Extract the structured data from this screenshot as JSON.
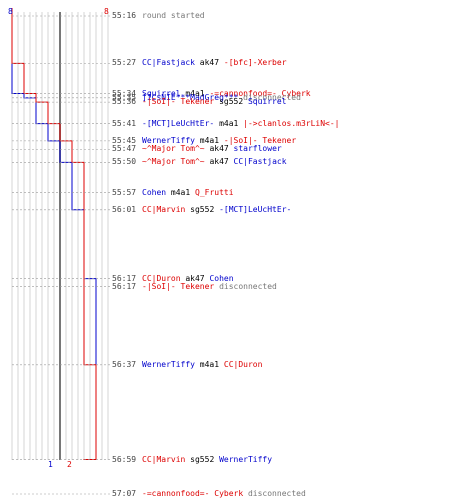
{
  "colors": {
    "blue": "#0000cc",
    "red": "#dd0000",
    "gray": "#777777",
    "grid": "#bbbbbb"
  },
  "count_labels": {
    "blue_start": "8",
    "red_start": "8",
    "blue_end": "1",
    "red_end": "2"
  },
  "timeline": {
    "start": "55:16",
    "end": "57:07"
  },
  "blue_steps": [
    [
      "55:16",
      8
    ],
    [
      "55:34",
      7
    ],
    [
      "55:35",
      6
    ],
    [
      "55:41",
      5
    ],
    [
      "55:45",
      4
    ],
    [
      "55:50",
      3
    ],
    [
      "56:01",
      2
    ],
    [
      "56:17",
      1
    ]
  ],
  "red_steps": [
    [
      "55:16",
      8
    ],
    [
      "55:27",
      7
    ],
    [
      "55:34",
      6
    ],
    [
      "55:36",
      5
    ],
    [
      "55:41",
      4
    ],
    [
      "55:45",
      3
    ],
    [
      "55:50",
      2
    ],
    [
      "56:37",
      1
    ],
    [
      "56:59",
      2
    ]
  ],
  "events": [
    {
      "time": "55:16",
      "parts": [
        {
          "t": "round started",
          "c": "gray"
        }
      ]
    },
    {
      "time": "55:27",
      "parts": [
        {
          "t": "CC|Fastjack",
          "c": "blue"
        },
        {
          "t": " ak47 ",
          "c": "black"
        },
        {
          "t": "-[bfc]-Xerber",
          "c": "red"
        }
      ]
    },
    {
      "time": "55:34",
      "parts": [
        {
          "t": "Squirrel",
          "c": "blue"
        },
        {
          "t": " m4a1 ",
          "c": "black"
        },
        {
          "t": "-=cannonfood=- Cyberk",
          "c": "red"
        }
      ]
    },
    {
      "time": "55:35",
      "parts": [
        {
          "t": "]ICsNIE***MadGreg***",
          "c": "blue"
        },
        {
          "t": " disconnected",
          "c": "gray"
        }
      ]
    },
    {
      "time": "55:36",
      "parts": [
        {
          "t": "-|SoI|- Tekener",
          "c": "red"
        },
        {
          "t": " sg552 ",
          "c": "black"
        },
        {
          "t": "Squirrel",
          "c": "blue"
        }
      ]
    },
    {
      "time": "55:41",
      "parts": [
        {
          "t": "-[MCT]LeUcHtEr-",
          "c": "blue"
        },
        {
          "t": " m4a1 ",
          "c": "black"
        },
        {
          "t": "|->clanlos.m3rLiN<-|",
          "c": "red"
        }
      ]
    },
    {
      "time": "55:45",
      "parts": [
        {
          "t": "WernerTiffy",
          "c": "blue"
        },
        {
          "t": " m4a1 ",
          "c": "black"
        },
        {
          "t": "-|SoI|- Tekener",
          "c": "red"
        }
      ]
    },
    {
      "time": "55:47",
      "parts": [
        {
          "t": "~^Major Tom^~",
          "c": "red"
        },
        {
          "t": " ak47 ",
          "c": "black"
        },
        {
          "t": "starflower",
          "c": "blue"
        }
      ]
    },
    {
      "time": "55:50",
      "parts": [
        {
          "t": "~^Major Tom^~",
          "c": "red"
        },
        {
          "t": " ak47 ",
          "c": "black"
        },
        {
          "t": "CC|Fastjack",
          "c": "blue"
        }
      ]
    },
    {
      "time": "55:57",
      "parts": [
        {
          "t": "Cohen",
          "c": "blue"
        },
        {
          "t": " m4a1 ",
          "c": "black"
        },
        {
          "t": "Q_Frutti",
          "c": "red"
        }
      ]
    },
    {
      "time": "56:01",
      "parts": [
        {
          "t": "CC|Marvin",
          "c": "red"
        },
        {
          "t": " sg552 ",
          "c": "black"
        },
        {
          "t": "-[MCT]LeUcHtEr-",
          "c": "blue"
        }
      ]
    },
    {
      "time": "56:17",
      "parts": [
        {
          "t": "CC|Duron",
          "c": "red"
        },
        {
          "t": " ak47 ",
          "c": "black"
        },
        {
          "t": "Cohen",
          "c": "blue"
        }
      ]
    },
    {
      "time": "56:17",
      "parts": [
        {
          "t": "-|SoI|- Tekener",
          "c": "red"
        },
        {
          "t": " disconnected",
          "c": "gray"
        }
      ]
    },
    {
      "time": "56:37",
      "parts": [
        {
          "t": "WernerTiffy",
          "c": "blue"
        },
        {
          "t": " m4a1 ",
          "c": "black"
        },
        {
          "t": "CC|Duron",
          "c": "red"
        }
      ]
    },
    {
      "time": "56:59",
      "parts": [
        {
          "t": "CC|Marvin",
          "c": "red"
        },
        {
          "t": " sg552 ",
          "c": "black"
        },
        {
          "t": "WernerTiffy",
          "c": "blue"
        }
      ]
    },
    {
      "time": "57:07",
      "parts": [
        {
          "t": "-=cannonfood=- Cyberk",
          "c": "red"
        },
        {
          "t": "  disconnected",
          "c": "gray"
        }
      ]
    }
  ]
}
